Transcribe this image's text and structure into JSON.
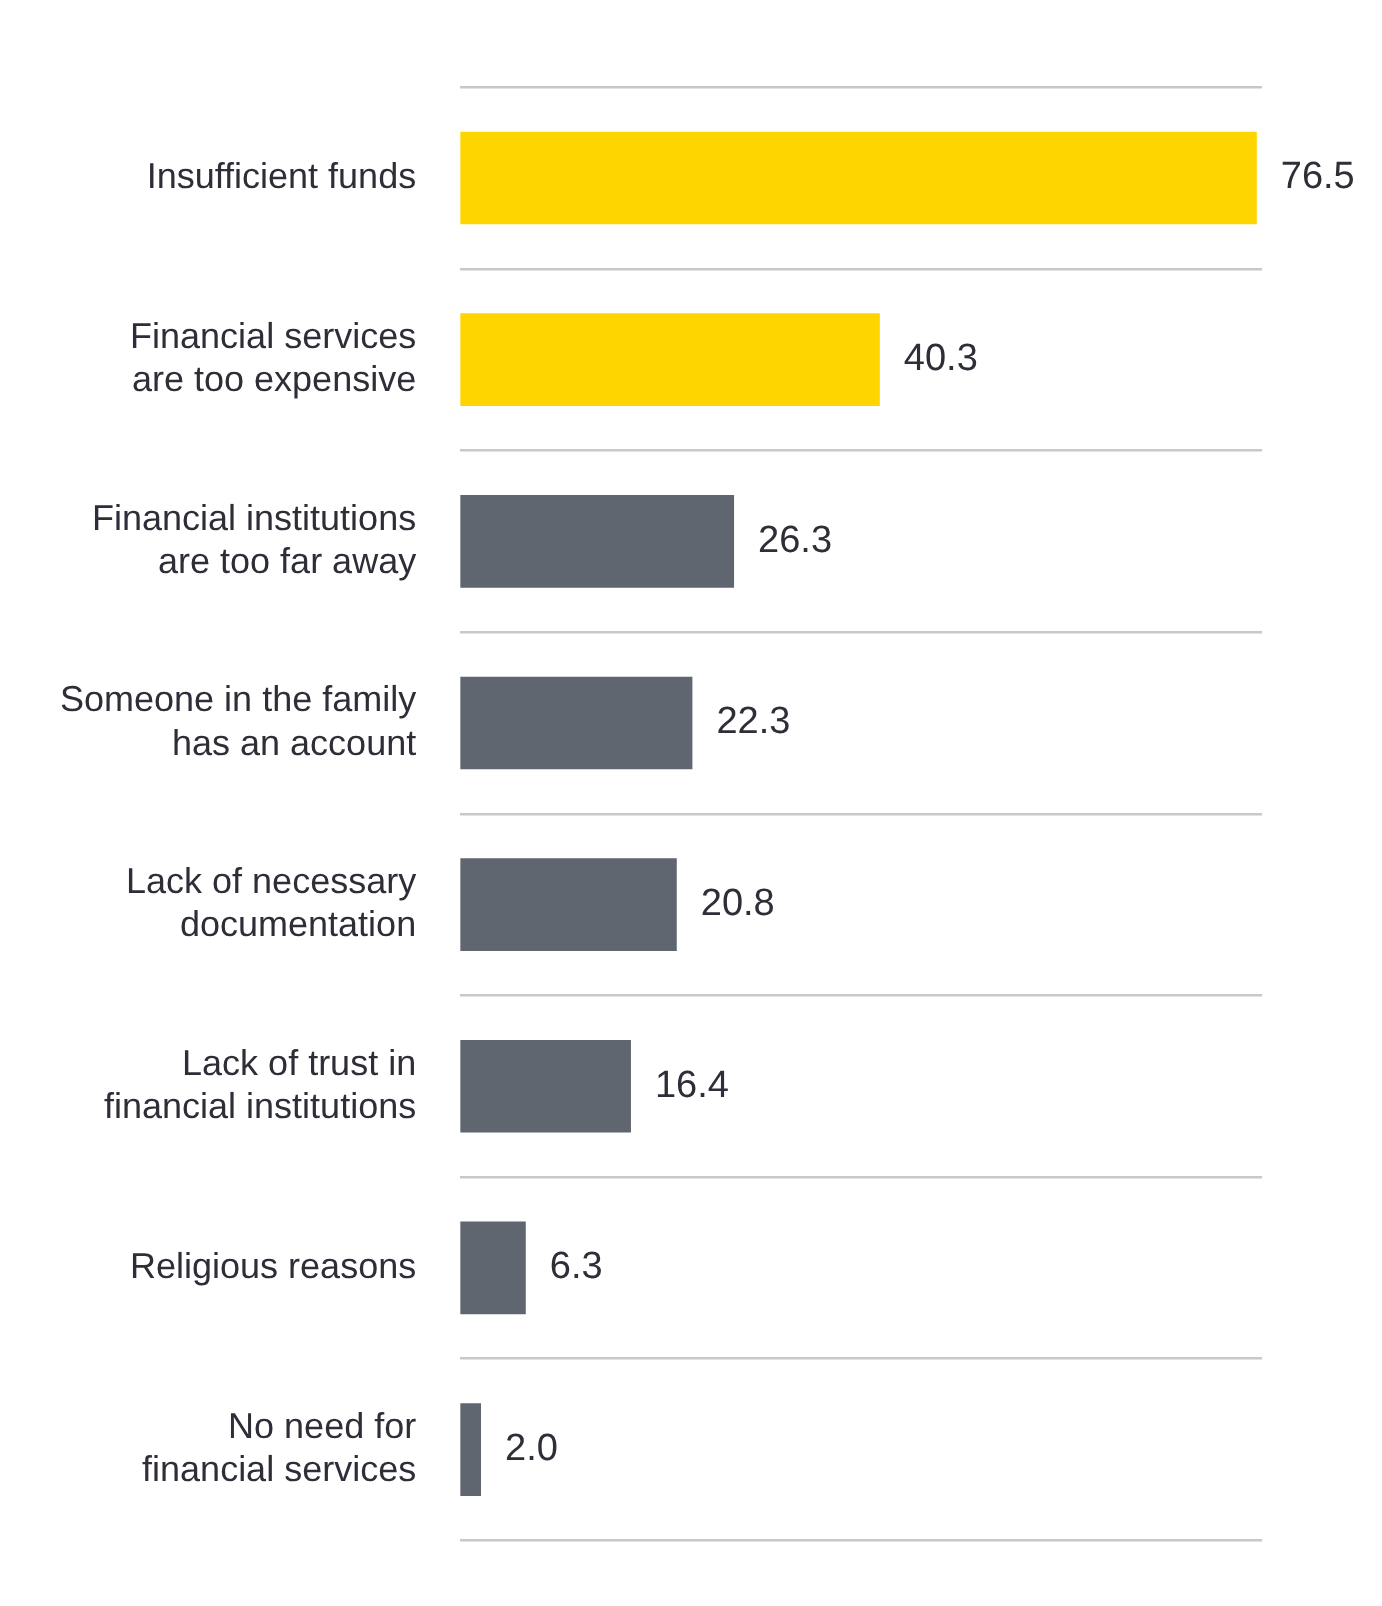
{
  "chart_data": {
    "type": "bar",
    "orientation": "horizontal",
    "categories": [
      "Insufficient funds",
      "Financial services\nare too expensive",
      "Financial institutions\nare too far away",
      "Someone in the family\nhas an account",
      "Lack of necessary\ndocumentation",
      "Lack of trust in\nfinancial institutions",
      "Religious reasons",
      "No need for\nfinancial services"
    ],
    "values": [
      76.5,
      40.3,
      26.3,
      22.3,
      20.8,
      16.4,
      6.3,
      2.0
    ],
    "colors": [
      "#ffd500",
      "#ffd500",
      "#5f6670",
      "#5f6670",
      "#5f6670",
      "#5f6670",
      "#5f6670",
      "#5f6670"
    ],
    "value_labels": [
      "76.5",
      "40.3",
      "26.3",
      "22.3",
      "20.8",
      "16.4",
      "6.3",
      "2.0"
    ],
    "xlim": [
      0,
      77
    ],
    "tick_labels": "y",
    "grid": "y",
    "legend": false
  }
}
